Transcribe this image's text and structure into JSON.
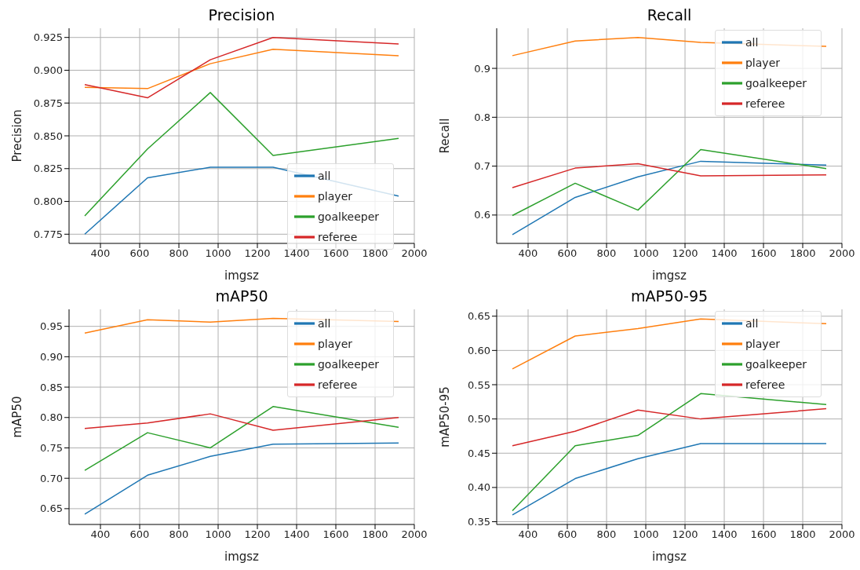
{
  "chart_data": [
    {
      "type": "line",
      "title": "Precision",
      "xlabel": "imgsz",
      "ylabel": "Precision",
      "x": [
        320,
        640,
        960,
        1280,
        1920
      ],
      "xlim": [
        240,
        2000
      ],
      "xticks": [
        400,
        600,
        800,
        1000,
        1200,
        1400,
        1600,
        1800,
        2000
      ],
      "ylim": [
        0.768,
        0.932
      ],
      "yticks": [
        0.775,
        {
          "value": 0.8,
          "label": "0.800"
        },
        0.825,
        {
          "value": 0.85,
          "label": "0.850"
        },
        0.875,
        {
          "value": 0.9,
          "label": "0.900"
        },
        0.925
      ],
      "grid": true,
      "legend": "bottom right",
      "series": [
        {
          "name": "all",
          "color": "#1f77b4",
          "values": [
            0.775,
            0.818,
            0.826,
            0.826,
            0.804
          ]
        },
        {
          "name": "player",
          "color": "#ff7f0e",
          "values": [
            0.887,
            0.886,
            0.905,
            0.916,
            0.911
          ]
        },
        {
          "name": "goalkeeper",
          "color": "#2ca02c",
          "values": [
            0.789,
            0.84,
            0.883,
            0.835,
            0.848
          ]
        },
        {
          "name": "referee",
          "color": "#d62728",
          "values": [
            0.889,
            0.879,
            0.908,
            0.925,
            0.92
          ]
        }
      ]
    },
    {
      "type": "line",
      "title": "Recall",
      "xlabel": "imgsz",
      "ylabel": "Recall",
      "x": [
        320,
        640,
        960,
        1280,
        1920
      ],
      "xlim": [
        240,
        2000
      ],
      "xticks": [
        400,
        600,
        800,
        1000,
        1200,
        1400,
        1600,
        1800,
        2000
      ],
      "ylim": [
        0.542,
        0.982
      ],
      "yticks": [
        0.6,
        0.7,
        0.8,
        0.9
      ],
      "grid": true,
      "legend": "top right",
      "series": [
        {
          "name": "all",
          "color": "#1f77b4",
          "values": [
            0.56,
            0.636,
            0.678,
            0.71,
            0.702
          ]
        },
        {
          "name": "player",
          "color": "#ff7f0e",
          "values": [
            0.926,
            0.956,
            0.963,
            0.953,
            0.945
          ]
        },
        {
          "name": "goalkeeper",
          "color": "#2ca02c",
          "values": [
            0.599,
            0.665,
            0.61,
            0.734,
            0.695
          ]
        },
        {
          "name": "referee",
          "color": "#d62728",
          "values": [
            0.656,
            0.696,
            0.705,
            0.68,
            0.682
          ]
        }
      ]
    },
    {
      "type": "line",
      "title": "mAP50",
      "xlabel": "imgsz",
      "ylabel": "mAP50",
      "x": [
        320,
        640,
        960,
        1280,
        1920
      ],
      "xlim": [
        240,
        2000
      ],
      "xticks": [
        400,
        600,
        800,
        1000,
        1200,
        1400,
        1600,
        1800,
        2000
      ],
      "ylim": [
        0.624,
        0.978
      ],
      "yticks": [
        0.65,
        {
          "value": 0.7,
          "label": "0.70"
        },
        0.75,
        {
          "value": 0.8,
          "label": "0.80"
        },
        0.85,
        {
          "value": 0.9,
          "label": "0.90"
        },
        0.95
      ],
      "grid": true,
      "legend": "top right",
      "series": [
        {
          "name": "all",
          "color": "#1f77b4",
          "values": [
            0.641,
            0.705,
            0.736,
            0.756,
            0.758
          ]
        },
        {
          "name": "player",
          "color": "#ff7f0e",
          "values": [
            0.939,
            0.961,
            0.957,
            0.963,
            0.958
          ]
        },
        {
          "name": "goalkeeper",
          "color": "#2ca02c",
          "values": [
            0.713,
            0.775,
            0.75,
            0.818,
            0.784
          ]
        },
        {
          "name": "referee",
          "color": "#d62728",
          "values": [
            0.782,
            0.791,
            0.806,
            0.779,
            0.8
          ]
        }
      ]
    },
    {
      "type": "line",
      "title": "mAP50-95",
      "xlabel": "imgsz",
      "ylabel": "mAP50-95",
      "x": [
        320,
        640,
        960,
        1280,
        1920
      ],
      "xlim": [
        240,
        2000
      ],
      "xticks": [
        400,
        600,
        800,
        1000,
        1200,
        1400,
        1600,
        1800,
        2000
      ],
      "ylim": [
        0.346,
        0.66
      ],
      "yticks": [
        0.35,
        {
          "value": 0.4,
          "label": "0.40"
        },
        0.45,
        {
          "value": 0.5,
          "label": "0.50"
        },
        0.55,
        {
          "value": 0.6,
          "label": "0.60"
        },
        0.65
      ],
      "grid": true,
      "legend": "top right",
      "series": [
        {
          "name": "all",
          "color": "#1f77b4",
          "values": [
            0.36,
            0.413,
            0.442,
            0.464,
            0.464
          ]
        },
        {
          "name": "player",
          "color": "#ff7f0e",
          "values": [
            0.573,
            0.621,
            0.632,
            0.646,
            0.639
          ]
        },
        {
          "name": "goalkeeper",
          "color": "#2ca02c",
          "values": [
            0.366,
            0.461,
            0.476,
            0.537,
            0.521
          ]
        },
        {
          "name": "referee",
          "color": "#d62728",
          "values": [
            0.461,
            0.482,
            0.513,
            0.5,
            0.515
          ]
        }
      ]
    }
  ]
}
